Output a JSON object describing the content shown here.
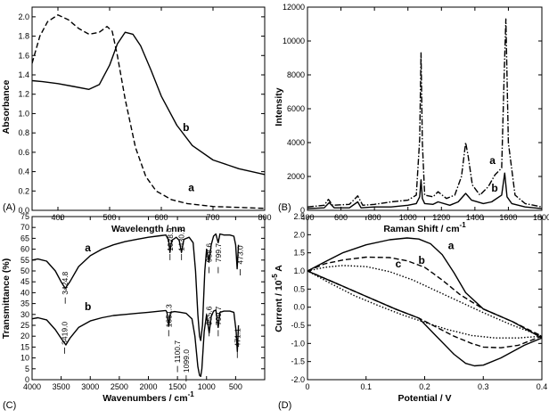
{
  "panels": [
    {
      "id": "A",
      "panel_label": "(A)",
      "xlabel": "Wavelength / nm",
      "ylabel": "Absorbance",
      "xlim": [
        350,
        800
      ],
      "ylim": [
        0,
        2.1
      ],
      "xticks": [
        400,
        500,
        600,
        700,
        800
      ],
      "yticks": [
        0.0,
        0.2,
        0.4,
        0.6,
        0.8,
        1.0,
        1.2,
        1.4,
        1.6,
        1.8,
        2.0
      ],
      "curve_labels": [
        {
          "text": "a",
          "x": 658,
          "y": 0.2
        },
        {
          "text": "b",
          "x": 648,
          "y": 0.82
        }
      ]
    },
    {
      "id": "B",
      "panel_label": "(B)",
      "xlabel": "Raman Shift / cm",
      "xlabel_sup": "-1",
      "ylabel": "Intensity",
      "xlim": [
        400,
        1800
      ],
      "ylim": [
        0,
        12000
      ],
      "xticks": [
        400,
        600,
        800,
        1000,
        1200,
        1400,
        1600,
        1800
      ],
      "yticks": [
        0,
        2000,
        4000,
        6000,
        8000,
        10000,
        12000
      ],
      "curve_labels": [
        {
          "text": "a",
          "x": 1505,
          "y": 2750
        },
        {
          "text": "b",
          "x": 1518,
          "y": 1100
        }
      ]
    },
    {
      "id": "C",
      "panel_label": "(C)",
      "xlabel": "Wavenumbers / cm",
      "xlabel_sup": "-1",
      "ylabel": "Transmittance (%)",
      "xlim": [
        4000,
        0
      ],
      "ylim": [
        0,
        75
      ],
      "xticks": [
        4000,
        3500,
        3000,
        2500,
        2000,
        1500,
        1000,
        500
      ],
      "yticks": [
        0,
        5,
        10,
        15,
        20,
        25,
        30,
        35,
        40,
        45,
        50,
        55,
        60,
        65,
        70,
        75
      ],
      "curve_labels": [
        {
          "text": "a",
          "x": 3040,
          "y": 59
        },
        {
          "text": "b",
          "x": 3040,
          "y": 32
        }
      ],
      "annotations": [
        {
          "text": "3424.8",
          "x": 3430,
          "y": 37
        },
        {
          "text": "1628.9",
          "x": 1628,
          "y": 57
        },
        {
          "text": "1430.7",
          "x": 1430,
          "y": 57
        },
        {
          "text": "958.6",
          "x": 958,
          "y": 51
        },
        {
          "text": "799.7",
          "x": 799,
          "y": 51
        },
        {
          "text": "473.0",
          "x": 420,
          "y": 50
        },
        {
          "text": "3419.0",
          "x": 3440,
          "y": 14
        },
        {
          "text": "1651.3",
          "x": 1651,
          "y": 22
        },
        {
          "text": "1100.7",
          "x": 1500,
          "y": 5.5
        },
        {
          "text": "1099.0",
          "x": 1350,
          "y": 1.2
        },
        {
          "text": "955.6",
          "x": 955,
          "y": 22
        },
        {
          "text": "799.7",
          "x": 799,
          "y": 22
        },
        {
          "text": "471.1",
          "x": 471,
          "y": 12
        }
      ]
    },
    {
      "id": "D",
      "panel_label": "(D)",
      "xlabel": "Potential / V",
      "ylabel": "Current / 10",
      "ylabel_sup": "-5",
      "ylabel_unit": " A",
      "xlim": [
        0.0,
        0.4
      ],
      "ylim": [
        -2.0,
        2.5
      ],
      "xticks": [
        0.0,
        0.1,
        0.2,
        0.3,
        0.4
      ],
      "yticks": [
        -2.0,
        -1.5,
        -1.0,
        -0.5,
        0.0,
        0.5,
        1.0,
        1.5,
        2.0,
        2.5
      ],
      "curve_labels": [
        {
          "text": "a",
          "x": 0.245,
          "y": 1.6
        },
        {
          "text": "b",
          "x": 0.195,
          "y": 1.2
        },
        {
          "text": "c",
          "x": 0.155,
          "y": 1.1
        }
      ]
    }
  ],
  "chart_data": [
    {
      "type": "line",
      "title": "",
      "xlabel": "Wavelength / nm",
      "ylabel": "Absorbance",
      "xlim": [
        350,
        800
      ],
      "ylim": [
        0,
        2.1
      ],
      "series": [
        {
          "name": "a",
          "style": "dashed",
          "x": [
            350,
            365,
            380,
            400,
            420,
            440,
            460,
            480,
            495,
            505,
            515,
            530,
            550,
            570,
            590,
            620,
            650,
            700,
            750,
            800
          ],
          "y": [
            1.52,
            1.8,
            1.95,
            2.02,
            1.97,
            1.88,
            1.82,
            1.84,
            1.9,
            1.85,
            1.6,
            1.15,
            0.65,
            0.35,
            0.2,
            0.11,
            0.07,
            0.04,
            0.03,
            0.02
          ]
        },
        {
          "name": "b",
          "style": "solid",
          "x": [
            350,
            370,
            400,
            430,
            460,
            480,
            500,
            515,
            530,
            545,
            560,
            580,
            600,
            630,
            660,
            700,
            750,
            800
          ],
          "y": [
            1.34,
            1.33,
            1.31,
            1.28,
            1.25,
            1.3,
            1.5,
            1.72,
            1.84,
            1.82,
            1.7,
            1.45,
            1.18,
            0.88,
            0.67,
            0.52,
            0.43,
            0.37
          ]
        }
      ]
    },
    {
      "type": "line",
      "title": "",
      "xlabel": "Raman Shift / cm-1",
      "ylabel": "Intensity",
      "xlim": [
        400,
        1800
      ],
      "ylim": [
        0,
        12000
      ],
      "series": [
        {
          "name": "a",
          "style": "dash-dot",
          "x": [
            400,
            500,
            525,
            550,
            650,
            700,
            730,
            800,
            900,
            1000,
            1050,
            1070,
            1078,
            1086,
            1100,
            1150,
            1180,
            1230,
            1280,
            1320,
            1345,
            1360,
            1385,
            1430,
            1480,
            1520,
            1560,
            1575,
            1585,
            1600,
            1640,
            1700,
            1800
          ],
          "y": [
            200,
            300,
            650,
            300,
            350,
            850,
            300,
            350,
            500,
            600,
            900,
            4200,
            9300,
            4000,
            900,
            800,
            1100,
            700,
            900,
            2000,
            4000,
            3200,
            1500,
            900,
            1400,
            2100,
            2500,
            8000,
            11300,
            4000,
            900,
            400,
            200
          ]
        },
        {
          "name": "b",
          "style": "solid",
          "x": [
            400,
            500,
            530,
            560,
            650,
            700,
            720,
            800,
            900,
            1000,
            1050,
            1070,
            1078,
            1086,
            1100,
            1150,
            1180,
            1250,
            1300,
            1345,
            1380,
            1450,
            1500,
            1560,
            1578,
            1592,
            1620,
            1700,
            1800
          ],
          "y": [
            100,
            150,
            450,
            150,
            150,
            500,
            150,
            200,
            200,
            300,
            400,
            800,
            1800,
            700,
            400,
            350,
            500,
            300,
            500,
            1000,
            600,
            400,
            500,
            900,
            2200,
            800,
            400,
            200,
            100
          ]
        }
      ]
    },
    {
      "type": "line",
      "title": "",
      "xlabel": "Wavenumbers / cm-1",
      "ylabel": "Transmittance (%)",
      "xlim": [
        4000,
        0
      ],
      "ylim": [
        0,
        75
      ],
      "series": [
        {
          "name": "a",
          "style": "solid",
          "x": [
            4000,
            3900,
            3750,
            3600,
            3500,
            3430,
            3350,
            3200,
            3000,
            2800,
            2600,
            2400,
            2200,
            2000,
            1800,
            1700,
            1650,
            1629,
            1600,
            1520,
            1470,
            1431,
            1390,
            1300,
            1230,
            1190,
            1150,
            1120,
            1100,
            1070,
            1030,
            1000,
            958,
            920,
            880,
            840,
            800,
            770,
            700,
            600,
            530,
            500,
            473,
            450
          ],
          "y": [
            55,
            55.5,
            54.5,
            50,
            45,
            42,
            45,
            52,
            57,
            60,
            62,
            63.5,
            64.5,
            65.5,
            66.2,
            66.5,
            64,
            58.5,
            64,
            65.5,
            64,
            58.5,
            64.5,
            65.5,
            63,
            50,
            30,
            20,
            18,
            25,
            50,
            60,
            54,
            62,
            66,
            67,
            63,
            67,
            66.5,
            66.5,
            66,
            62,
            51,
            62
          ]
        },
        {
          "name": "b",
          "style": "solid",
          "x": [
            4000,
            3900,
            3750,
            3600,
            3500,
            3419,
            3350,
            3200,
            3000,
            2800,
            2600,
            2400,
            2200,
            2000,
            1800,
            1700,
            1680,
            1651,
            1620,
            1550,
            1450,
            1350,
            1250,
            1200,
            1150,
            1120,
            1100,
            1080,
            1040,
            1000,
            955,
            920,
            880,
            840,
            800,
            770,
            700,
            600,
            530,
            490,
            471,
            450
          ],
          "y": [
            28,
            28.5,
            27.5,
            23,
            19,
            16,
            19,
            24,
            27,
            28.5,
            29.5,
            30,
            30.5,
            31,
            31.5,
            31.8,
            31,
            24.5,
            31,
            31.3,
            31,
            30.5,
            28,
            20,
            6,
            2,
            1.5,
            5,
            22,
            30,
            21.5,
            29,
            31.5,
            32,
            24,
            31,
            31.5,
            31.5,
            31,
            22,
            13,
            25
          ]
        }
      ]
    },
    {
      "type": "line",
      "title": "",
      "xlabel": "Potential / V",
      "ylabel": "Current / 10-5 A",
      "xlim": [
        0.0,
        0.4
      ],
      "ylim": [
        -2.0,
        2.5
      ],
      "series": [
        {
          "name": "a",
          "style": "solid",
          "closed": true,
          "x": [
            0.0,
            0.03,
            0.06,
            0.1,
            0.14,
            0.17,
            0.19,
            0.21,
            0.23,
            0.25,
            0.27,
            0.3,
            0.35,
            0.4,
            0.37,
            0.33,
            0.3,
            0.285,
            0.27,
            0.25,
            0.22,
            0.19,
            0.15,
            0.1,
            0.05,
            0.0
          ],
          "y": [
            1.0,
            1.25,
            1.5,
            1.72,
            1.86,
            1.91,
            1.88,
            1.75,
            1.45,
            0.95,
            0.4,
            -0.05,
            -0.4,
            -0.85,
            -1.05,
            -1.4,
            -1.6,
            -1.62,
            -1.55,
            -1.3,
            -0.8,
            -0.3,
            -0.05,
            0.3,
            0.65,
            1.0
          ]
        },
        {
          "name": "b",
          "style": "dashed",
          "closed": true,
          "x": [
            0.0,
            0.03,
            0.06,
            0.1,
            0.14,
            0.17,
            0.2,
            0.23,
            0.26,
            0.3,
            0.35,
            0.4,
            0.36,
            0.33,
            0.3,
            0.28,
            0.25,
            0.22,
            0.19,
            0.15,
            0.1,
            0.05,
            0.0
          ],
          "y": [
            1.0,
            1.2,
            1.3,
            1.38,
            1.37,
            1.28,
            1.1,
            0.75,
            0.35,
            -0.05,
            -0.4,
            -0.8,
            -1.05,
            -1.12,
            -1.1,
            -1.0,
            -0.8,
            -0.55,
            -0.3,
            -0.05,
            0.3,
            0.65,
            1.0
          ]
        },
        {
          "name": "c",
          "style": "dotted",
          "closed": true,
          "x": [
            0.0,
            0.03,
            0.06,
            0.1,
            0.14,
            0.18,
            0.22,
            0.26,
            0.3,
            0.35,
            0.4,
            0.36,
            0.32,
            0.28,
            0.24,
            0.2,
            0.16,
            0.12,
            0.08,
            0.04,
            0.0
          ],
          "y": [
            1.0,
            1.1,
            1.15,
            1.12,
            0.98,
            0.75,
            0.45,
            0.15,
            -0.15,
            -0.5,
            -0.8,
            -0.85,
            -0.85,
            -0.78,
            -0.62,
            -0.42,
            -0.2,
            0.05,
            0.32,
            0.65,
            1.0
          ]
        }
      ]
    }
  ]
}
